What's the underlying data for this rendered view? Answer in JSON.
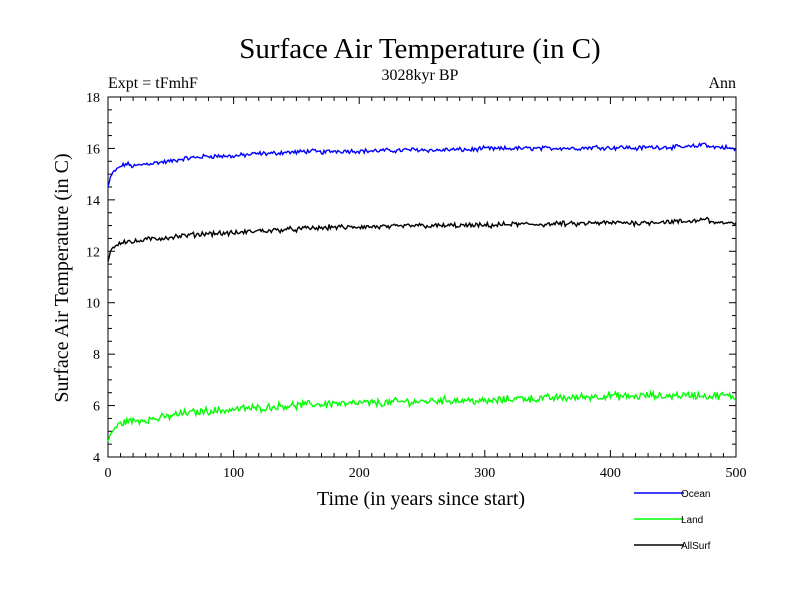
{
  "chart_data": {
    "type": "line",
    "title": "Surface Air Temperature (in C)",
    "subtitle": "3028kyr BP",
    "left_note": "Expt = tFmhF",
    "right_note": "Ann",
    "xlabel": "Time (in years since start)",
    "ylabel": "Surface Air Temperature (in C)",
    "xlim": [
      0,
      500
    ],
    "ylim": [
      4,
      18
    ],
    "xticks": [
      0,
      100,
      200,
      300,
      400,
      500
    ],
    "yticks": [
      4,
      6,
      8,
      10,
      12,
      14,
      16,
      18
    ],
    "x_minor_step": 10,
    "y_minor_step": 0.5,
    "grid": false,
    "legend_position": "bottom-right",
    "series": [
      {
        "name": "Ocean",
        "color": "#0000ff",
        "x": [
          0,
          2,
          5,
          10,
          15,
          20,
          30,
          40,
          50,
          60,
          70,
          80,
          90,
          100,
          110,
          120,
          130,
          140,
          150,
          160,
          170,
          180,
          190,
          200,
          210,
          220,
          230,
          240,
          250,
          260,
          270,
          280,
          290,
          300,
          310,
          320,
          330,
          340,
          350,
          360,
          370,
          380,
          390,
          400,
          410,
          420,
          430,
          440,
          450,
          460,
          470,
          475,
          480,
          490,
          500
        ],
        "values": [
          14.5,
          14.9,
          15.1,
          15.3,
          15.4,
          15.3,
          15.4,
          15.45,
          15.5,
          15.6,
          15.65,
          15.7,
          15.7,
          15.7,
          15.75,
          15.8,
          15.8,
          15.85,
          15.85,
          15.9,
          15.85,
          15.9,
          15.9,
          15.9,
          15.9,
          15.92,
          15.92,
          15.95,
          15.95,
          15.92,
          15.95,
          15.95,
          15.95,
          16.0,
          15.98,
          16.0,
          16.0,
          16.0,
          16.0,
          16.02,
          16.0,
          16.02,
          16.05,
          16.02,
          16.05,
          16.0,
          16.05,
          16.05,
          16.05,
          16.05,
          16.1,
          16.2,
          16.05,
          16.05,
          15.95
        ],
        "noise": 0.07
      },
      {
        "name": "Land",
        "color": "#00ff00",
        "x": [
          0,
          2,
          5,
          10,
          15,
          20,
          30,
          40,
          50,
          60,
          70,
          80,
          90,
          100,
          110,
          120,
          130,
          140,
          150,
          160,
          170,
          180,
          190,
          200,
          210,
          220,
          230,
          240,
          250,
          260,
          270,
          280,
          290,
          300,
          310,
          320,
          330,
          340,
          350,
          360,
          370,
          380,
          390,
          400,
          410,
          420,
          430,
          440,
          450,
          460,
          470,
          480,
          490,
          500
        ],
        "values": [
          4.6,
          4.9,
          5.1,
          5.3,
          5.4,
          5.4,
          5.45,
          5.5,
          5.6,
          5.7,
          5.75,
          5.8,
          5.8,
          5.85,
          5.9,
          5.9,
          5.95,
          6.0,
          6.0,
          6.05,
          6.05,
          6.1,
          6.05,
          6.1,
          6.1,
          6.1,
          6.15,
          6.15,
          6.15,
          6.2,
          6.2,
          6.2,
          6.2,
          6.15,
          6.2,
          6.25,
          6.3,
          6.25,
          6.3,
          6.3,
          6.3,
          6.35,
          6.35,
          6.4,
          6.35,
          6.35,
          6.4,
          6.35,
          6.4,
          6.4,
          6.4,
          6.35,
          6.4,
          6.3
        ],
        "noise": 0.12
      },
      {
        "name": "AllSurf",
        "color": "#000000",
        "x": [
          0,
          2,
          5,
          10,
          15,
          20,
          30,
          40,
          50,
          60,
          70,
          80,
          90,
          100,
          110,
          120,
          130,
          140,
          150,
          160,
          170,
          180,
          190,
          200,
          210,
          220,
          230,
          240,
          250,
          260,
          270,
          280,
          290,
          300,
          310,
          320,
          330,
          340,
          350,
          360,
          370,
          380,
          390,
          400,
          410,
          420,
          430,
          440,
          450,
          460,
          470,
          475,
          480,
          490,
          500
        ],
        "values": [
          11.6,
          12.0,
          12.2,
          12.35,
          12.4,
          12.35,
          12.45,
          12.5,
          12.55,
          12.6,
          12.65,
          12.7,
          12.7,
          12.7,
          12.75,
          12.8,
          12.8,
          12.85,
          12.85,
          12.9,
          12.9,
          12.95,
          12.92,
          12.95,
          12.95,
          12.95,
          12.95,
          13.0,
          13.0,
          12.98,
          13.0,
          13.0,
          13.0,
          13.0,
          13.02,
          13.05,
          13.05,
          13.05,
          13.05,
          13.08,
          13.05,
          13.08,
          13.1,
          13.1,
          13.12,
          13.1,
          13.12,
          13.15,
          13.15,
          13.15,
          13.2,
          13.3,
          13.15,
          13.1,
          13.05
        ],
        "noise": 0.08
      }
    ]
  }
}
